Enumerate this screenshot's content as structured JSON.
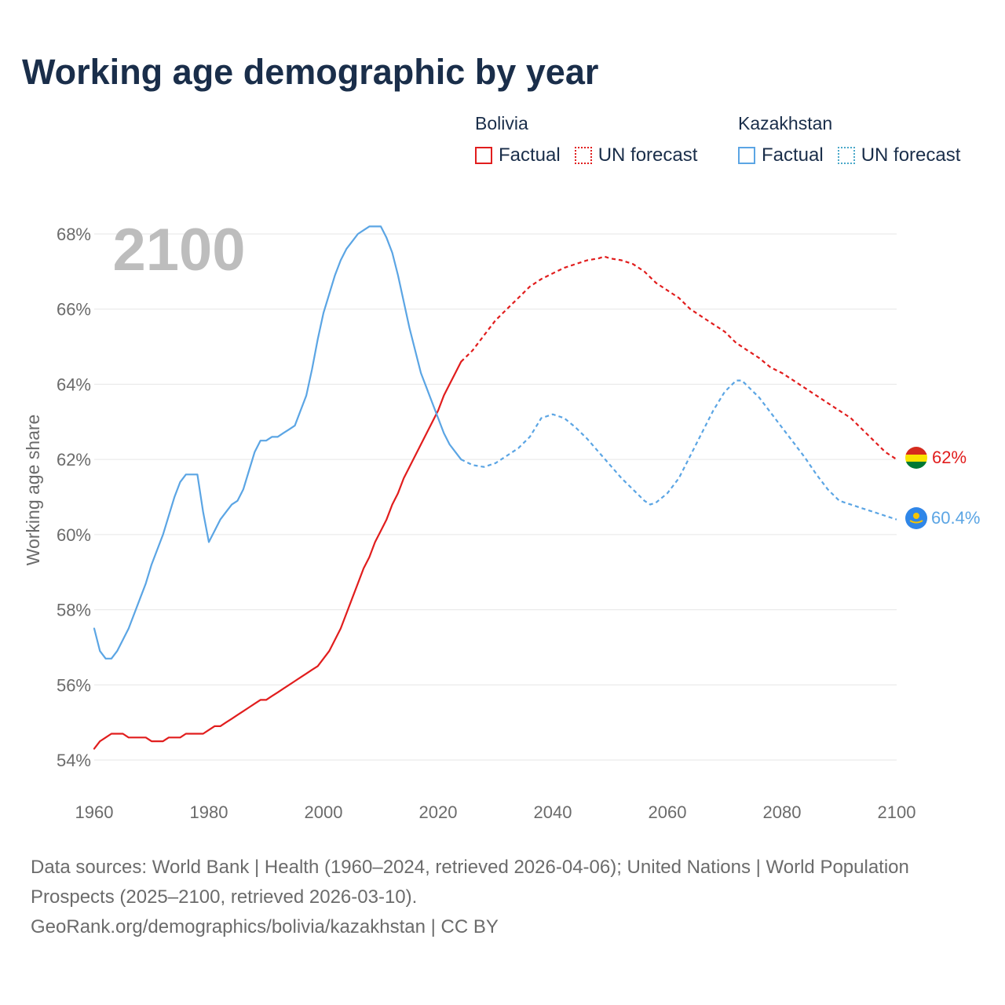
{
  "title": "Working age demographic by year",
  "legend": [
    {
      "country": "Bolivia",
      "factual_label": "Factual",
      "forecast_label": "UN forecast",
      "color": "#e11d1d"
    },
    {
      "country": "Kazakhstan",
      "factual_label": "Factual",
      "forecast_label": "UN forecast",
      "color": "#5ba5e4",
      "forecast_color": "#4aa8c9"
    }
  ],
  "year_label": "2100",
  "end_labels": {
    "bolivia": "62%",
    "kazakhstan": "60.4%"
  },
  "footer": {
    "sources": "Data sources: World Bank | Health (1960–2024, retrieved 2026-04-06); United Nations | World Population Prospects (2025–2100, retrieved 2026-03-10).",
    "credit": "GeoRank.org/demographics/bolivia/kazakhstan | CC BY"
  },
  "chart_data": {
    "type": "line",
    "title": "Working age demographic by year",
    "xlabel": "",
    "ylabel": "Working age share",
    "xlim": [
      1960,
      2100
    ],
    "ylim": [
      54,
      68
    ],
    "x_ticks": [
      1960,
      1980,
      2000,
      2020,
      2040,
      2060,
      2080,
      2100
    ],
    "y_ticks": [
      54,
      56,
      58,
      60,
      62,
      64,
      66,
      68
    ],
    "y_tick_labels": [
      "54%",
      "56%",
      "58%",
      "60%",
      "62%",
      "64%",
      "66%",
      "68%"
    ],
    "grid": true,
    "series": [
      {
        "name": "Bolivia",
        "segment": "Factual",
        "color": "#e11d1d",
        "dash": "solid",
        "points": [
          [
            1960,
            54.3
          ],
          [
            1961,
            54.5
          ],
          [
            1962,
            54.6
          ],
          [
            1963,
            54.7
          ],
          [
            1964,
            54.7
          ],
          [
            1965,
            54.7
          ],
          [
            1966,
            54.6
          ],
          [
            1967,
            54.6
          ],
          [
            1968,
            54.6
          ],
          [
            1969,
            54.6
          ],
          [
            1970,
            54.5
          ],
          [
            1971,
            54.5
          ],
          [
            1972,
            54.5
          ],
          [
            1973,
            54.6
          ],
          [
            1974,
            54.6
          ],
          [
            1975,
            54.6
          ],
          [
            1976,
            54.7
          ],
          [
            1977,
            54.7
          ],
          [
            1978,
            54.7
          ],
          [
            1979,
            54.7
          ],
          [
            1980,
            54.8
          ],
          [
            1981,
            54.9
          ],
          [
            1982,
            54.9
          ],
          [
            1983,
            55.0
          ],
          [
            1984,
            55.1
          ],
          [
            1985,
            55.2
          ],
          [
            1986,
            55.3
          ],
          [
            1987,
            55.4
          ],
          [
            1988,
            55.5
          ],
          [
            1989,
            55.6
          ],
          [
            1990,
            55.6
          ],
          [
            1991,
            55.7
          ],
          [
            1992,
            55.8
          ],
          [
            1993,
            55.9
          ],
          [
            1994,
            56.0
          ],
          [
            1995,
            56.1
          ],
          [
            1996,
            56.2
          ],
          [
            1997,
            56.3
          ],
          [
            1998,
            56.4
          ],
          [
            1999,
            56.5
          ],
          [
            2000,
            56.7
          ],
          [
            2001,
            56.9
          ],
          [
            2002,
            57.2
          ],
          [
            2003,
            57.5
          ],
          [
            2004,
            57.9
          ],
          [
            2005,
            58.3
          ],
          [
            2006,
            58.7
          ],
          [
            2007,
            59.1
          ],
          [
            2008,
            59.4
          ],
          [
            2009,
            59.8
          ],
          [
            2010,
            60.1
          ],
          [
            2011,
            60.4
          ],
          [
            2012,
            60.8
          ],
          [
            2013,
            61.1
          ],
          [
            2014,
            61.5
          ],
          [
            2015,
            61.8
          ],
          [
            2016,
            62.1
          ],
          [
            2017,
            62.4
          ],
          [
            2018,
            62.7
          ],
          [
            2019,
            63.0
          ],
          [
            2020,
            63.3
          ],
          [
            2021,
            63.7
          ],
          [
            2022,
            64.0
          ],
          [
            2023,
            64.3
          ],
          [
            2024,
            64.6
          ]
        ]
      },
      {
        "name": "Bolivia",
        "segment": "UN forecast",
        "color": "#e11d1d",
        "dash": "dotted",
        "points": [
          [
            2024,
            64.6
          ],
          [
            2026,
            64.9
          ],
          [
            2028,
            65.3
          ],
          [
            2030,
            65.7
          ],
          [
            2032,
            66.0
          ],
          [
            2034,
            66.3
          ],
          [
            2036,
            66.6
          ],
          [
            2038,
            66.8
          ],
          [
            2040,
            66.95
          ],
          [
            2042,
            67.1
          ],
          [
            2044,
            67.2
          ],
          [
            2046,
            67.3
          ],
          [
            2048,
            67.35
          ],
          [
            2049,
            67.4
          ],
          [
            2050,
            67.35
          ],
          [
            2052,
            67.3
          ],
          [
            2054,
            67.2
          ],
          [
            2056,
            67.0
          ],
          [
            2058,
            66.7
          ],
          [
            2060,
            66.5
          ],
          [
            2062,
            66.3
          ],
          [
            2064,
            66.0
          ],
          [
            2066,
            65.8
          ],
          [
            2068,
            65.6
          ],
          [
            2070,
            65.4
          ],
          [
            2072,
            65.1
          ],
          [
            2074,
            64.9
          ],
          [
            2076,
            64.7
          ],
          [
            2078,
            64.45
          ],
          [
            2080,
            64.3
          ],
          [
            2082,
            64.1
          ],
          [
            2084,
            63.9
          ],
          [
            2086,
            63.7
          ],
          [
            2088,
            63.5
          ],
          [
            2090,
            63.3
          ],
          [
            2092,
            63.1
          ],
          [
            2094,
            62.8
          ],
          [
            2096,
            62.5
          ],
          [
            2098,
            62.2
          ],
          [
            2100,
            62.0
          ]
        ]
      },
      {
        "name": "Kazakhstan",
        "segment": "Factual",
        "color": "#5ba5e4",
        "dash": "solid",
        "points": [
          [
            1960,
            57.5
          ],
          [
            1961,
            56.9
          ],
          [
            1962,
            56.7
          ],
          [
            1963,
            56.7
          ],
          [
            1964,
            56.9
          ],
          [
            1965,
            57.2
          ],
          [
            1966,
            57.5
          ],
          [
            1967,
            57.9
          ],
          [
            1968,
            58.3
          ],
          [
            1969,
            58.7
          ],
          [
            1970,
            59.2
          ],
          [
            1971,
            59.6
          ],
          [
            1972,
            60.0
          ],
          [
            1973,
            60.5
          ],
          [
            1974,
            61.0
          ],
          [
            1975,
            61.4
          ],
          [
            1976,
            61.6
          ],
          [
            1977,
            61.6
          ],
          [
            1978,
            61.6
          ],
          [
            1979,
            60.6
          ],
          [
            1980,
            59.8
          ],
          [
            1981,
            60.1
          ],
          [
            1982,
            60.4
          ],
          [
            1983,
            60.6
          ],
          [
            1984,
            60.8
          ],
          [
            1985,
            60.9
          ],
          [
            1986,
            61.2
          ],
          [
            1987,
            61.7
          ],
          [
            1988,
            62.2
          ],
          [
            1989,
            62.5
          ],
          [
            1990,
            62.5
          ],
          [
            1991,
            62.6
          ],
          [
            1992,
            62.6
          ],
          [
            1993,
            62.7
          ],
          [
            1994,
            62.8
          ],
          [
            1995,
            62.9
          ],
          [
            1996,
            63.3
          ],
          [
            1997,
            63.7
          ],
          [
            1998,
            64.4
          ],
          [
            1999,
            65.2
          ],
          [
            2000,
            65.9
          ],
          [
            2001,
            66.4
          ],
          [
            2002,
            66.9
          ],
          [
            2003,
            67.3
          ],
          [
            2004,
            67.6
          ],
          [
            2005,
            67.8
          ],
          [
            2006,
            68.0
          ],
          [
            2007,
            68.1
          ],
          [
            2008,
            68.2
          ],
          [
            2009,
            68.2
          ],
          [
            2010,
            68.2
          ],
          [
            2011,
            67.9
          ],
          [
            2012,
            67.5
          ],
          [
            2013,
            66.9
          ],
          [
            2014,
            66.2
          ],
          [
            2015,
            65.5
          ],
          [
            2016,
            64.9
          ],
          [
            2017,
            64.3
          ],
          [
            2018,
            63.9
          ],
          [
            2019,
            63.5
          ],
          [
            2020,
            63.1
          ],
          [
            2021,
            62.7
          ],
          [
            2022,
            62.4
          ],
          [
            2023,
            62.2
          ],
          [
            2024,
            62.0
          ]
        ]
      },
      {
        "name": "Kazakhstan",
        "segment": "UN forecast",
        "color": "#5ba5e4",
        "dash": "dotted",
        "points": [
          [
            2024,
            62.0
          ],
          [
            2026,
            61.85
          ],
          [
            2028,
            61.8
          ],
          [
            2030,
            61.9
          ],
          [
            2032,
            62.1
          ],
          [
            2034,
            62.3
          ],
          [
            2036,
            62.6
          ],
          [
            2037,
            62.85
          ],
          [
            2038,
            63.1
          ],
          [
            2040,
            63.2
          ],
          [
            2042,
            63.1
          ],
          [
            2044,
            62.85
          ],
          [
            2046,
            62.55
          ],
          [
            2048,
            62.2
          ],
          [
            2050,
            61.85
          ],
          [
            2052,
            61.5
          ],
          [
            2054,
            61.2
          ],
          [
            2056,
            60.9
          ],
          [
            2057,
            60.8
          ],
          [
            2058,
            60.85
          ],
          [
            2060,
            61.1
          ],
          [
            2062,
            61.5
          ],
          [
            2064,
            62.1
          ],
          [
            2066,
            62.7
          ],
          [
            2068,
            63.3
          ],
          [
            2070,
            63.8
          ],
          [
            2072,
            64.1
          ],
          [
            2073,
            64.1
          ],
          [
            2074,
            63.95
          ],
          [
            2076,
            63.65
          ],
          [
            2078,
            63.25
          ],
          [
            2080,
            62.85
          ],
          [
            2082,
            62.45
          ],
          [
            2084,
            62.05
          ],
          [
            2086,
            61.6
          ],
          [
            2088,
            61.2
          ],
          [
            2090,
            60.9
          ],
          [
            2092,
            60.8
          ],
          [
            2094,
            60.7
          ],
          [
            2096,
            60.6
          ],
          [
            2098,
            60.5
          ],
          [
            2100,
            60.4
          ]
        ]
      }
    ]
  }
}
